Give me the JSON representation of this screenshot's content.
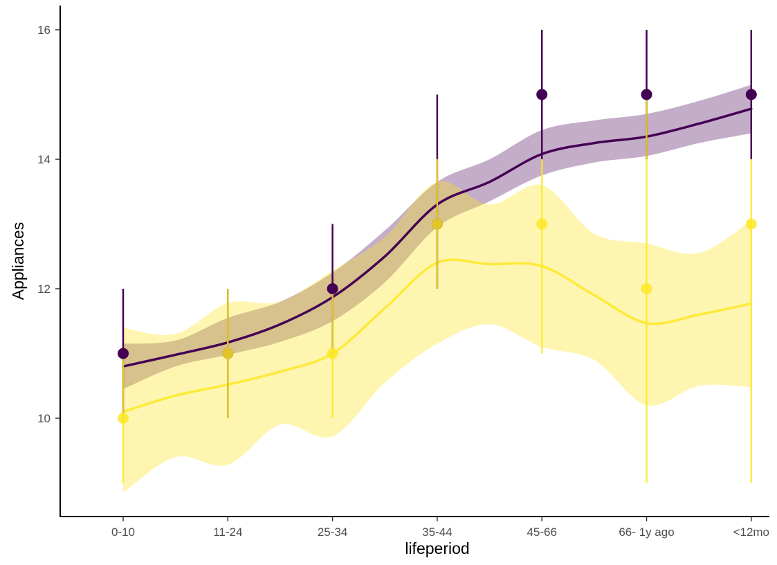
{
  "chart_data": {
    "type": "line",
    "xlabel": "lifeperiod",
    "ylabel": "Appliances",
    "categories": [
      "0-10",
      "11-24",
      "25-34",
      "35-44",
      "45-66",
      "66- 1y ago",
      "<12mo"
    ],
    "ylim": [
      8.5,
      16.35
    ],
    "yticks": [
      10,
      12,
      14,
      16
    ],
    "grid": false,
    "legend": "none",
    "series": [
      {
        "color": "#440154",
        "points": {
          "y": [
            11,
            11,
            12,
            13,
            15,
            15,
            15
          ],
          "ymin": [
            10,
            10,
            11,
            12,
            14,
            14,
            14
          ],
          "ymax": [
            12,
            12,
            13,
            15,
            16,
            16,
            16
          ]
        },
        "smooth": {
          "x": [
            0,
            0.5,
            1,
            1.5,
            2,
            2.5,
            3,
            3.5,
            4,
            4.5,
            5,
            5.5,
            6
          ],
          "y": [
            10.8,
            10.98,
            11.17,
            11.45,
            11.87,
            12.5,
            13.3,
            13.65,
            14.08,
            14.25,
            14.35,
            14.55,
            14.78
          ],
          "lower": [
            10.45,
            10.8,
            10.98,
            11.18,
            11.5,
            12.1,
            12.95,
            13.35,
            13.75,
            13.95,
            14.05,
            14.25,
            14.4
          ],
          "upper": [
            11.15,
            11.2,
            11.55,
            11.8,
            12.25,
            12.9,
            13.65,
            14.0,
            14.45,
            14.6,
            14.7,
            14.9,
            15.15
          ]
        }
      },
      {
        "color": "#fde725",
        "points": {
          "y": [
            10,
            11,
            11,
            13,
            13,
            12,
            13
          ],
          "ymin": [
            9,
            10,
            10,
            12,
            11,
            9,
            9
          ],
          "ymax": [
            11,
            12,
            12,
            14,
            14,
            15,
            14
          ]
        },
        "smooth": {
          "x": [
            0,
            0.5,
            1,
            1.5,
            2,
            2.5,
            3,
            3.5,
            4,
            4.5,
            5,
            5.5,
            6
          ],
          "y": [
            10.1,
            10.35,
            10.52,
            10.72,
            11.0,
            11.7,
            12.4,
            12.38,
            12.35,
            11.9,
            11.47,
            11.6,
            11.77
          ],
          "lower": [
            8.85,
            9.4,
            9.28,
            9.9,
            9.72,
            10.55,
            11.15,
            11.45,
            11.1,
            10.9,
            10.2,
            10.5,
            10.48
          ],
          "upper": [
            11.4,
            11.3,
            11.78,
            11.8,
            12.28,
            12.8,
            13.65,
            13.3,
            13.6,
            12.85,
            12.7,
            12.55,
            13.05
          ]
        }
      }
    ]
  }
}
